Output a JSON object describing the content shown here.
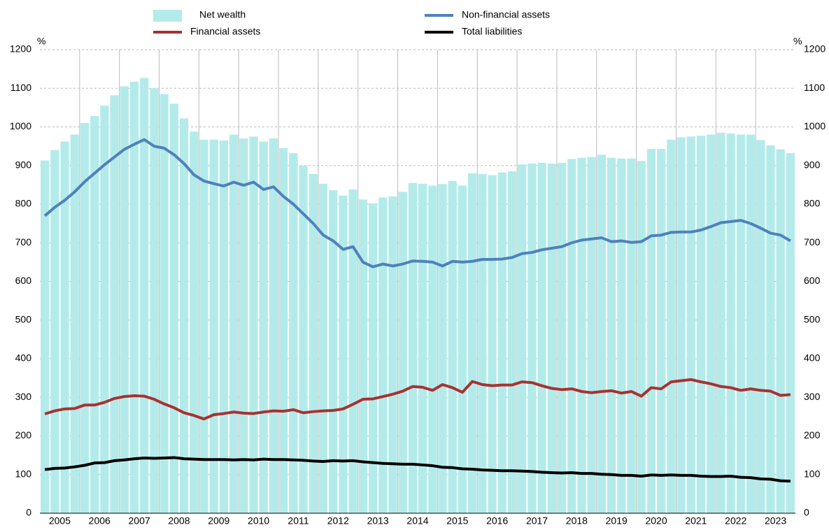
{
  "chart_data": {
    "type": "combo",
    "y_unit": "%",
    "categories": [
      "2005",
      null,
      null,
      null,
      "2006",
      null,
      null,
      null,
      "2007",
      null,
      null,
      null,
      "2008",
      null,
      null,
      null,
      "2009",
      null,
      null,
      null,
      "2010",
      null,
      null,
      null,
      "2011",
      null,
      null,
      null,
      "2012",
      null,
      null,
      null,
      "2013",
      null,
      null,
      null,
      "2014",
      null,
      null,
      null,
      "2015",
      null,
      null,
      null,
      "2016",
      null,
      null,
      null,
      "2017",
      null,
      null,
      null,
      "2018",
      null,
      null,
      null,
      "2019",
      null,
      null,
      null,
      "2020",
      null,
      null,
      null,
      "2021",
      null,
      null,
      null,
      "2022",
      null,
      null,
      null,
      "2023",
      null,
      null,
      null
    ],
    "ylim": [
      0,
      1200
    ],
    "yticks": [
      0,
      100,
      200,
      300,
      400,
      500,
      600,
      700,
      800,
      900,
      1000,
      1100,
      1200
    ],
    "y2lim": [
      0,
      1200
    ],
    "y2ticks": [
      0,
      100,
      200,
      300,
      400,
      500,
      600,
      700,
      800,
      900,
      1000,
      1100,
      1200
    ],
    "grid": true,
    "series": [
      {
        "name": "Net wealth",
        "type": "bar",
        "color": "#b3ebea",
        "values": [
          913,
          940,
          962,
          980,
          1010,
          1028,
          1055,
          1082,
          1105,
          1117,
          1127,
          1100,
          1085,
          1060,
          1022,
          988,
          967,
          967,
          965,
          980,
          970,
          975,
          962,
          970,
          945,
          932,
          900,
          878,
          853,
          836,
          822,
          838,
          812,
          802,
          817,
          820,
          832,
          855,
          853,
          848,
          852,
          860,
          848,
          880,
          878,
          875,
          882,
          885,
          903,
          905,
          907,
          905,
          907,
          917,
          920,
          922,
          928,
          920,
          918,
          918,
          912,
          943,
          943,
          967,
          973,
          975,
          977,
          980,
          985,
          983,
          980,
          980,
          966,
          952,
          942,
          932
        ]
      },
      {
        "name": "Financial assets",
        "type": "line",
        "color": "#a83232",
        "values": [
          257,
          265,
          270,
          271,
          280,
          280,
          287,
          297,
          302,
          304,
          303,
          295,
          283,
          273,
          260,
          253,
          244,
          255,
          258,
          262,
          259,
          258,
          262,
          265,
          264,
          268,
          260,
          263,
          265,
          266,
          270,
          282,
          295,
          296,
          302,
          308,
          316,
          328,
          326,
          318,
          333,
          325,
          313,
          341,
          333,
          330,
          332,
          332,
          340,
          338,
          330,
          323,
          320,
          322,
          315,
          312,
          315,
          317,
          311,
          315,
          303,
          325,
          322,
          340,
          343,
          346,
          340,
          335,
          328,
          325,
          318,
          322,
          318,
          316,
          305,
          307
        ]
      },
      {
        "name": "Non-financial assets",
        "type": "line",
        "color": "#4f81bd",
        "values": [
          770,
          792,
          810,
          832,
          858,
          880,
          902,
          922,
          942,
          955,
          967,
          950,
          945,
          928,
          905,
          876,
          860,
          853,
          847,
          857,
          849,
          857,
          838,
          845,
          820,
          800,
          775,
          750,
          720,
          705,
          683,
          690,
          650,
          638,
          645,
          640,
          645,
          653,
          652,
          650,
          640,
          652,
          650,
          652,
          657,
          657,
          658,
          662,
          672,
          675,
          682,
          686,
          690,
          700,
          707,
          710,
          713,
          703,
          705,
          701,
          703,
          718,
          720,
          727,
          728,
          728,
          733,
          742,
          752,
          755,
          758,
          750,
          738,
          725,
          720,
          705
        ]
      },
      {
        "name": "Total liabilities",
        "type": "line",
        "color": "#000000",
        "values": [
          113,
          116,
          117,
          120,
          124,
          130,
          131,
          136,
          138,
          141,
          143,
          142,
          143,
          144,
          141,
          140,
          139,
          139,
          139,
          138,
          139,
          138,
          140,
          139,
          139,
          138,
          137,
          135,
          134,
          136,
          135,
          136,
          133,
          131,
          129,
          128,
          127,
          127,
          125,
          123,
          119,
          118,
          115,
          114,
          112,
          111,
          110,
          110,
          109,
          108,
          106,
          105,
          104,
          105,
          103,
          103,
          101,
          100,
          98,
          98,
          96,
          99,
          98,
          99,
          98,
          98,
          96,
          95,
          95,
          96,
          93,
          92,
          89,
          88,
          84,
          83
        ]
      }
    ]
  }
}
